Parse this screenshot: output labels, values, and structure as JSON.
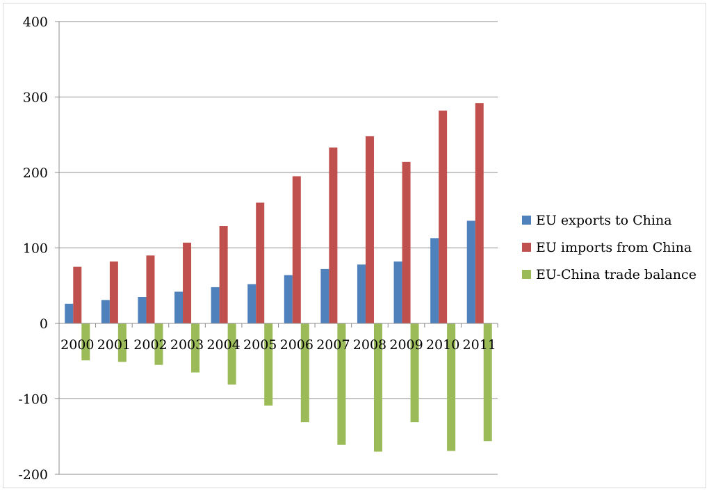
{
  "chart_data": {
    "type": "bar",
    "title": "",
    "xlabel": "",
    "ylabel": "",
    "categories": [
      "2000",
      "2001",
      "2002",
      "2003",
      "2004",
      "2005",
      "2006",
      "2007",
      "2008",
      "2009",
      "2010",
      "2011"
    ],
    "series": [
      {
        "name": "EU exports to China",
        "color": "#4f81bd",
        "values": [
          26,
          31,
          35,
          42,
          48,
          52,
          64,
          72,
          78,
          82,
          113,
          136
        ]
      },
      {
        "name": "EU imports from China",
        "color": "#c0504d",
        "values": [
          75,
          82,
          90,
          107,
          129,
          160,
          195,
          233,
          248,
          214,
          282,
          292
        ]
      },
      {
        "name": "EU-China trade balance",
        "color": "#9bbb59",
        "values": [
          -49,
          -51,
          -55,
          -65,
          -81,
          -109,
          -131,
          -161,
          -170,
          -131,
          -169,
          -156
        ]
      }
    ],
    "ylim": [
      -200,
      400
    ],
    "yticks": [
      400,
      300,
      200,
      100,
      0,
      -100,
      -200
    ],
    "grid": true,
    "legend_position": "right"
  }
}
